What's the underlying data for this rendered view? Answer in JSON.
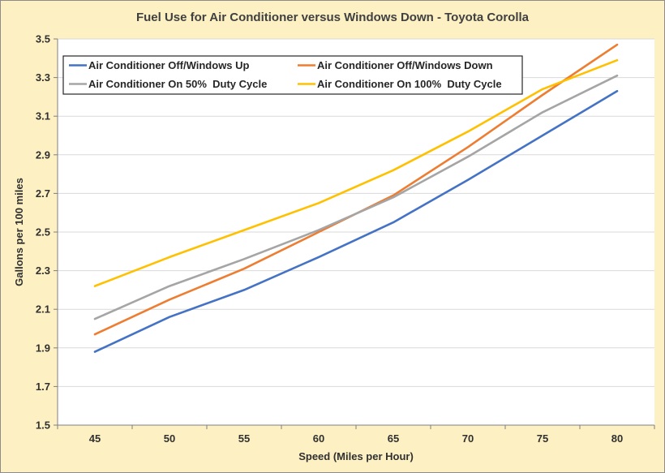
{
  "chart_data": {
    "type": "line",
    "title": "Fuel Use for Air Conditioner versus Windows Down - Toyota Corolla",
    "xlabel": "Speed (Miles per Hour)",
    "ylabel": "Gallons per 100 miles",
    "categories": [
      "45",
      "50",
      "55",
      "60",
      "65",
      "70",
      "75",
      "80"
    ],
    "ylim": [
      1.5,
      3.5
    ],
    "yticks": [
      "1.5",
      "1.7",
      "1.9",
      "2.1",
      "2.3",
      "2.5",
      "2.7",
      "2.9",
      "3.1",
      "3.3",
      "3.5"
    ],
    "grid": true,
    "legend_position": "top-left",
    "series": [
      {
        "name": "Air Conditioner Off/Windows Up",
        "color": "#4472c4",
        "values": [
          1.88,
          2.06,
          2.2,
          2.37,
          2.55,
          2.77,
          3.0,
          3.23
        ]
      },
      {
        "name": "Air Conditioner Off/Windows Down",
        "color": "#ed7d31",
        "values": [
          1.97,
          2.15,
          2.31,
          2.5,
          2.69,
          2.94,
          3.21,
          3.47
        ]
      },
      {
        "name": "Air Conditioner On 50%  Duty Cycle",
        "color": "#a5a5a5",
        "values": [
          2.05,
          2.22,
          2.36,
          2.51,
          2.68,
          2.89,
          3.12,
          3.31
        ]
      },
      {
        "name": "Air Conditioner On 100%  Duty Cycle",
        "color": "#ffc000",
        "values": [
          2.22,
          2.37,
          2.51,
          2.65,
          2.82,
          3.02,
          3.24,
          3.39
        ]
      }
    ]
  }
}
